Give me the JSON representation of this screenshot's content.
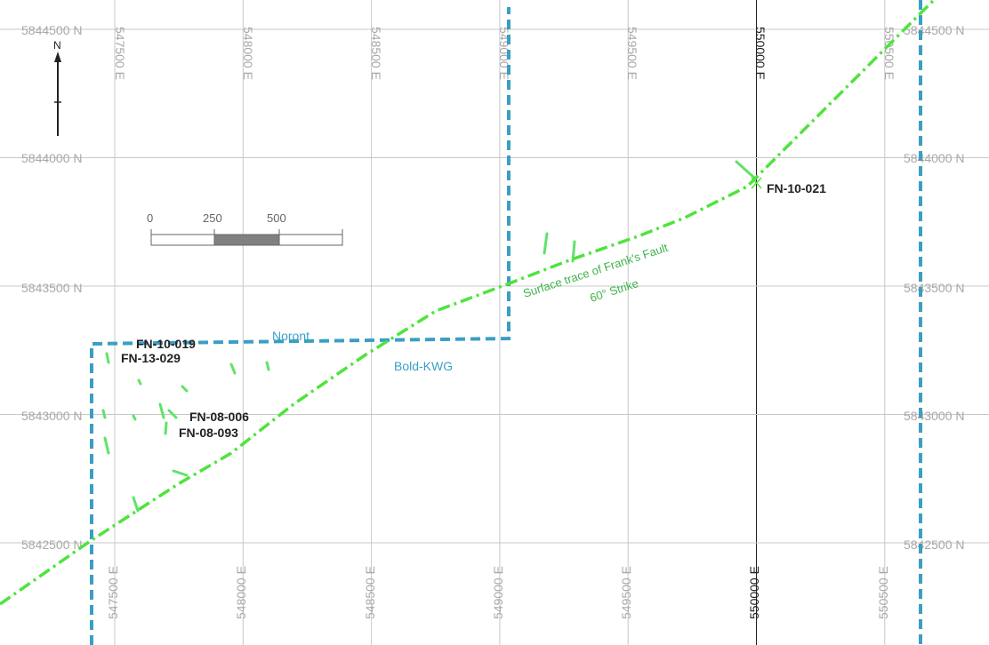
{
  "colors": {
    "grid": "#c8c8c8",
    "grid_major": "#222222",
    "claim_boundary": "#3a9fc4",
    "fault": "#4ee43c",
    "outcrop": "#5fe36a"
  },
  "grid": {
    "eastings": [
      {
        "label": "547500 E",
        "major": false
      },
      {
        "label": "548000 E",
        "major": false
      },
      {
        "label": "548500 E",
        "major": false
      },
      {
        "label": "549000 E",
        "major": false
      },
      {
        "label": "549500 E",
        "major": false
      },
      {
        "label": "550000 E",
        "major": true
      },
      {
        "label": "550500 E",
        "major": false
      }
    ],
    "northings": [
      {
        "label": "5844500 N"
      },
      {
        "label": "5844000 N"
      },
      {
        "label": "5843500 N"
      },
      {
        "label": "5843000 N"
      },
      {
        "label": "5842500 N"
      }
    ]
  },
  "north_arrow": {
    "label": "N",
    "icon": "north-arrow-icon"
  },
  "scale_bar": {
    "ticks": [
      "0",
      "250",
      "500"
    ]
  },
  "drill_holes": [
    {
      "id": "FN-10-019",
      "label": "FN-10-019"
    },
    {
      "id": "FN-13-029",
      "label": "FN-13-029"
    },
    {
      "id": "FN-08-006",
      "label": "FN-08-006"
    },
    {
      "id": "FN-08-093",
      "label": "FN-08-093"
    },
    {
      "id": "FN-10-021",
      "label": "FN-10-021"
    }
  ],
  "fault": {
    "label_line1": "Surface trace of Frank's Fault",
    "label_line2": "60° Strike"
  },
  "claims": [
    {
      "id": "noront",
      "label": "Noront"
    },
    {
      "id": "bold-kwg",
      "label": "Bold-KWG"
    }
  ]
}
